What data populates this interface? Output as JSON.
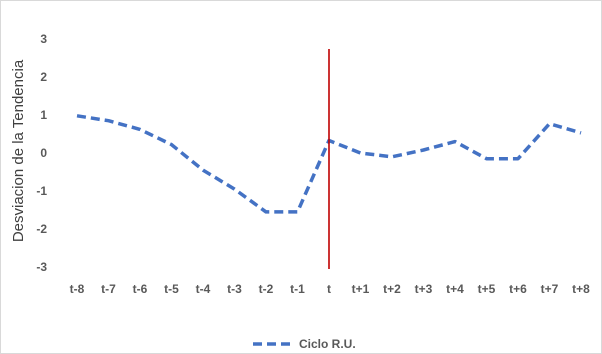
{
  "chart_data": {
    "type": "line",
    "title": "",
    "xlabel": "",
    "ylabel": "Desviacion de la Tendencia",
    "categories": [
      "t-8",
      "t-7",
      "t-6",
      "t-5",
      "t-4",
      "t-3",
      "t-2",
      "t-1",
      "t",
      "t+1",
      "t+2",
      "t+3",
      "t+4",
      "t+5",
      "t+6",
      "t+7",
      "t+8"
    ],
    "series": [
      {
        "name": "Ciclo R.U.",
        "values": [
          0.98,
          0.85,
          0.62,
          0.22,
          -0.45,
          -0.95,
          -1.55,
          -1.55,
          0.33,
          0.0,
          -0.1,
          0.08,
          0.3,
          -0.15,
          -0.15,
          0.77,
          0.53
        ],
        "color": "#4472C4",
        "style": "dashed"
      }
    ],
    "ylim": [
      -3,
      3
    ],
    "yticks": [
      "-3",
      "-2",
      "-1",
      "0",
      "1",
      "2",
      "3"
    ],
    "grid": false,
    "legend": "bottom",
    "marker_line": {
      "category": "t",
      "color": "#C00000"
    }
  }
}
